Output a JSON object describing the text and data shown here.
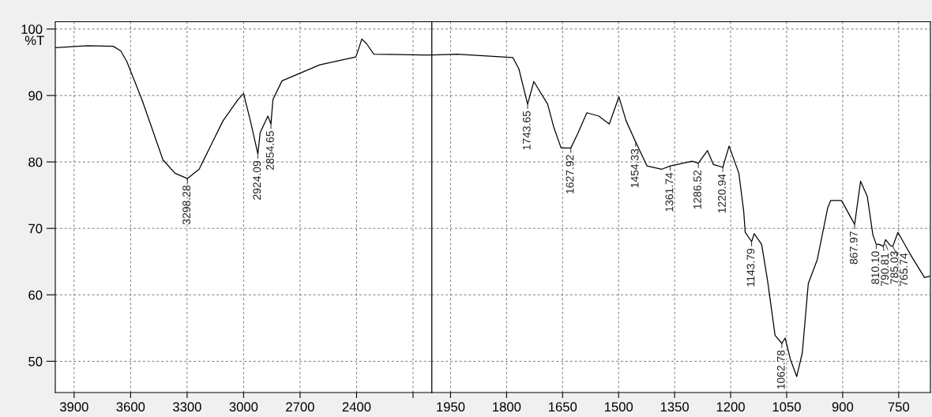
{
  "chart_data": [
    {
      "type": "line",
      "ylabel": "%T",
      "xlim": [
        4000,
        2000
      ],
      "ylim": [
        45.3,
        101.1
      ],
      "xticks": [
        3900,
        3600,
        3300,
        3000,
        2700,
        2400,
        {
          "value": 2100,
          "label": null
        }
      ],
      "yticks": [
        50,
        60,
        70,
        80,
        90,
        100
      ],
      "grid": true,
      "legend": false,
      "marker": "none",
      "line_style": "solid",
      "series": [
        {
          "color": "#000000",
          "x": [
            3997,
            3829,
            3692,
            3652,
            3620,
            3540,
            3428,
            3364,
            3298.28,
            3236,
            3172,
            3109,
            3029,
            3000,
            2964,
            2924.09,
            2912,
            2871,
            2854.65,
            2844,
            2796,
            2596,
            2404,
            2388,
            2372,
            2347,
            2308,
            2050,
            2000
          ],
          "values": [
            97.2,
            97.5,
            97.4,
            96.7,
            95.1,
            89.4,
            80.3,
            78.3,
            77.5,
            78.9,
            82.6,
            86.2,
            89.4,
            90.3,
            86.2,
            81.2,
            84.4,
            86.9,
            85.7,
            89.4,
            92.2,
            94.6,
            95.8,
            97.1,
            98.5,
            97.8,
            96.2,
            96.1,
            96.1
          ]
        }
      ],
      "annotations": [
        {
          "text": "3298.28",
          "x": 3298.28,
          "y": 77.5
        },
        {
          "text": "2924.09",
          "x": 2924.09,
          "y": 81.2
        },
        {
          "text": "2854.65",
          "x": 2854.65,
          "y": 85.7
        }
      ]
    },
    {
      "type": "line",
      "xlim": [
        2000,
        665
      ],
      "ylim": [
        45.3,
        101.1
      ],
      "tick_labels": "x",
      "xticks": [
        1950,
        1800,
        1650,
        1500,
        1350,
        1200,
        1050,
        900,
        750
      ],
      "yticks": [
        50,
        60,
        70,
        80,
        90,
        100
      ],
      "grid": true,
      "legend": false,
      "marker": "none",
      "line_style": "solid",
      "series": [
        {
          "color": "#000000",
          "x": [
            2000,
            1932,
            1783,
            1767,
            1743.65,
            1727,
            1690,
            1674,
            1654,
            1627.92,
            1610,
            1585,
            1553,
            1525,
            1499,
            1480,
            1454.33,
            1424,
            1384,
            1361.74,
            1303,
            1286.52,
            1262,
            1246,
            1220.94,
            1204,
            1178,
            1165,
            1161,
            1143.79,
            1137,
            1117,
            1101,
            1081,
            1062.78,
            1054,
            1040,
            1023,
            1008,
            992,
            968,
            940,
            932,
            903,
            867.97,
            852,
            834,
            819,
            810.1,
            802,
            790.81,
            785.03,
            772,
            765.74,
            752,
            721,
            681,
            667
          ],
          "values": [
            96.1,
            96.2,
            95.7,
            94,
            88.7,
            92.1,
            88.7,
            85.3,
            82.1,
            82.1,
            84.2,
            87.4,
            86.9,
            85.7,
            89.8,
            86.2,
            83.0,
            79.4,
            78.9,
            79.4,
            80.1,
            79.8,
            81.7,
            79.6,
            79.2,
            82.4,
            78.3,
            72.6,
            69.4,
            68.0,
            69.2,
            67.6,
            62.1,
            53.9,
            52.7,
            53.5,
            50.3,
            47.7,
            51.3,
            61.7,
            65.3,
            73.1,
            74.2,
            74.2,
            70.6,
            77.1,
            74.8,
            69.0,
            67.6,
            67.6,
            67.3,
            68.3,
            67.4,
            67.3,
            69.4,
            66.3,
            62.6,
            62.8
          ]
        }
      ],
      "annotations": [
        {
          "text": "1743.65",
          "x": 1743.65,
          "y": 88.7
        },
        {
          "text": "1627.92",
          "x": 1627.92,
          "y": 82.1
        },
        {
          "text": "1454.33",
          "x": 1454.33,
          "y": 83.0
        },
        {
          "text": "1361.74",
          "x": 1361.74,
          "y": 79.4
        },
        {
          "text": "1286.52",
          "x": 1286.52,
          "y": 79.8
        },
        {
          "text": "1220.94",
          "x": 1220.94,
          "y": 79.2
        },
        {
          "text": "1143.79",
          "x": 1143.79,
          "y": 68.0
        },
        {
          "text": "1062.78",
          "x": 1062.78,
          "y": 52.7
        },
        {
          "text": "867.97",
          "x": 867.97,
          "y": 70.6
        },
        {
          "text": "810.10",
          "x": 810.1,
          "y": 67.6
        },
        {
          "text": "790.81",
          "x": 790.81,
          "y": 67.3
        },
        {
          "text": "785.03",
          "x": 785.03,
          "y": 67.6
        },
        {
          "text": "765.74",
          "x": 765.74,
          "y": 67.3
        }
      ]
    }
  ]
}
